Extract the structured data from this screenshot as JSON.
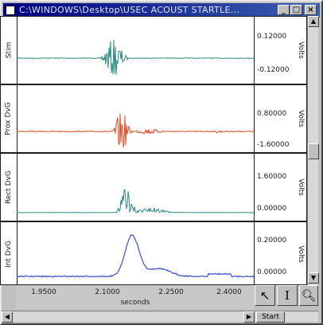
{
  "window": {
    "title": "C:\\WINDOWS\\Desktop\\USEC ACOUST STARTLE...",
    "minimize_label": "_",
    "maximize_label": "□",
    "close_label": "×"
  },
  "channels": [
    {
      "label": "Stim",
      "unit": "Volts",
      "scale_top": "0.12000",
      "scale_bottom": "-0.12000",
      "color": "#2e8b80"
    },
    {
      "label": "Prox DvG",
      "unit": "Volts",
      "scale_top": "0.80000",
      "scale_bottom": "-1.60000",
      "color": "#e04a24"
    },
    {
      "label": "Rect DvG",
      "unit": "Volts",
      "scale_top": "1.60000",
      "scale_bottom": "0.00000",
      "color": "#2e8b80"
    },
    {
      "label": "Int DvG",
      "unit": "Volts",
      "scale_top": "0.20000",
      "scale_bottom": "0.00000",
      "color": "#3a4fd0"
    }
  ],
  "x_axis": {
    "ticks": [
      "1.9500",
      "2.1000",
      "2.2500",
      "2.4000"
    ],
    "label": "seconds"
  },
  "tools": {
    "pointer": "pointer-tool",
    "cursor": "I-beam-tool",
    "zoom": "zoom-tool"
  },
  "hscroll": {
    "start_label": "Start"
  }
}
